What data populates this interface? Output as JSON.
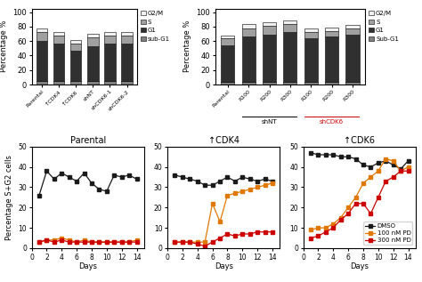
{
  "chart_data": [
    {
      "type": "bar",
      "stacked": true,
      "categories": [
        "Parental",
        "↑CDK4",
        "↑CDK6",
        "shNT",
        "shCDK6-1",
        "shCDK6-2"
      ],
      "ylabel": "Percentage %",
      "ylim": [
        0,
        105
      ],
      "yticks": [
        0,
        20,
        40,
        60,
        80,
        100
      ],
      "legend": "right",
      "series": [
        {
          "name": "sub-G1",
          "color": "#808080",
          "values": [
            5,
            5,
            5,
            5,
            5,
            5
          ]
        },
        {
          "name": "G1",
          "color": "#303030",
          "values": [
            55,
            52,
            42,
            48,
            52,
            52
          ]
        },
        {
          "name": "S",
          "color": "#a0a0a0",
          "values": [
            12,
            10,
            10,
            12,
            10,
            10
          ]
        },
        {
          "name": "G2/M",
          "color": "#f0f0f0",
          "values": [
            5,
            5,
            5,
            5,
            5,
            5
          ]
        }
      ]
    },
    {
      "type": "bar",
      "stacked": true,
      "categories": [
        "Parental",
        "R100",
        "R200",
        "R300",
        "R100",
        "R200",
        "R300"
      ],
      "ylabel": "Percentage %",
      "ylim": [
        0,
        105
      ],
      "yticks": [
        0,
        20,
        40,
        60,
        80,
        100
      ],
      "legend": "right",
      "series": [
        {
          "name": "Sub-G1",
          "color": "#808080",
          "values": [
            4,
            4,
            4,
            4,
            4,
            4,
            4
          ]
        },
        {
          "name": "G1",
          "color": "#303030",
          "values": [
            50,
            62,
            65,
            68,
            60,
            62,
            65
          ]
        },
        {
          "name": "S",
          "color": "#a0a0a0",
          "values": [
            10,
            12,
            12,
            12,
            8,
            8,
            8
          ]
        },
        {
          "name": "G2/M",
          "color": "#f0f0f0",
          "values": [
            4,
            5,
            5,
            5,
            5,
            5,
            5
          ]
        }
      ],
      "annotations": [
        {
          "text": "shNT",
          "from": 1,
          "to": 3,
          "color": "#000000"
        },
        {
          "text": "shCDK6",
          "from": 4,
          "to": 6,
          "color": "#cc0000"
        }
      ]
    },
    {
      "type": "line",
      "title": "Parental",
      "x": [
        1,
        2,
        3,
        4,
        5,
        6,
        7,
        8,
        9,
        10,
        11,
        12,
        13,
        14
      ],
      "xlabel": "Days",
      "ylabel": "Percentage S+G2 cells",
      "xlim": [
        0,
        15
      ],
      "xticks": [
        0,
        2,
        4,
        6,
        8,
        10,
        12,
        14
      ],
      "ylim": [
        0,
        50
      ],
      "yticks": [
        0,
        10,
        20,
        30,
        40,
        50
      ],
      "series": [
        {
          "name": "DMSO",
          "color": "#1a1a1a",
          "marker": "square",
          "values": [
            26,
            38,
            34,
            37,
            35,
            33,
            37,
            32,
            29,
            28,
            36,
            35,
            36,
            34
          ]
        },
        {
          "name": "100 nM PD",
          "color": "#e07800",
          "marker": "square",
          "values": [
            3,
            4,
            4,
            5,
            4,
            3,
            4,
            3,
            3,
            3,
            3,
            3,
            3,
            4
          ]
        },
        {
          "name": "300 nM PD",
          "color": "#cc0000",
          "marker": "square",
          "values": [
            3,
            4,
            3,
            4,
            3,
            3,
            3,
            3,
            3,
            3,
            3,
            3,
            3,
            3
          ]
        }
      ]
    },
    {
      "type": "line",
      "title": "↑CDK4",
      "x": [
        1,
        2,
        3,
        4,
        5,
        6,
        7,
        8,
        9,
        10,
        11,
        12,
        13,
        14
      ],
      "xlabel": "Days",
      "xlim": [
        0,
        15
      ],
      "xticks": [
        0,
        2,
        4,
        6,
        8,
        10,
        12,
        14
      ],
      "ylim": [
        0,
        50
      ],
      "yticks": [
        0,
        10,
        20,
        30,
        40,
        50
      ],
      "series": [
        {
          "name": "DMSO",
          "color": "#1a1a1a",
          "marker": "square",
          "values": [
            36,
            35,
            34,
            33,
            31,
            31,
            33,
            35,
            33,
            35,
            34,
            33,
            34,
            33
          ]
        },
        {
          "name": "100 nM PD",
          "color": "#e07800",
          "marker": "square",
          "values": [
            3,
            3,
            3,
            3,
            3,
            22,
            13,
            26,
            27,
            28,
            29,
            30,
            31,
            32
          ]
        },
        {
          "name": "300 nM PD",
          "color": "#cc0000",
          "marker": "square",
          "values": [
            3,
            3,
            3,
            2,
            1,
            3,
            5,
            7,
            6,
            7,
            7,
            8,
            8,
            8
          ]
        }
      ]
    },
    {
      "type": "line",
      "title": "↑CDK6",
      "x": [
        1,
        2,
        3,
        4,
        5,
        6,
        7,
        8,
        9,
        10,
        11,
        12,
        13,
        14
      ],
      "xlabel": "Days",
      "xlim": [
        0,
        15
      ],
      "xticks": [
        0,
        2,
        4,
        6,
        8,
        10,
        12,
        14
      ],
      "ylim": [
        0,
        50
      ],
      "yticks": [
        0,
        10,
        20,
        30,
        40,
        50
      ],
      "legend": "lower right",
      "series": [
        {
          "name": "DMSO",
          "color": "#1a1a1a",
          "marker": "square",
          "values": [
            47,
            46,
            46,
            46,
            45,
            45,
            44,
            41,
            40,
            42,
            43,
            41,
            39,
            43
          ]
        },
        {
          "name": "100 nM PD",
          "color": "#e07800",
          "marker": "square",
          "values": [
            9,
            10,
            10,
            12,
            15,
            20,
            25,
            32,
            35,
            38,
            44,
            43,
            38,
            40
          ]
        },
        {
          "name": "300 nM PD",
          "color": "#cc0000",
          "marker": "square",
          "values": [
            5,
            6,
            8,
            10,
            14,
            17,
            22,
            22,
            17,
            25,
            33,
            35,
            38,
            38
          ]
        }
      ]
    }
  ]
}
